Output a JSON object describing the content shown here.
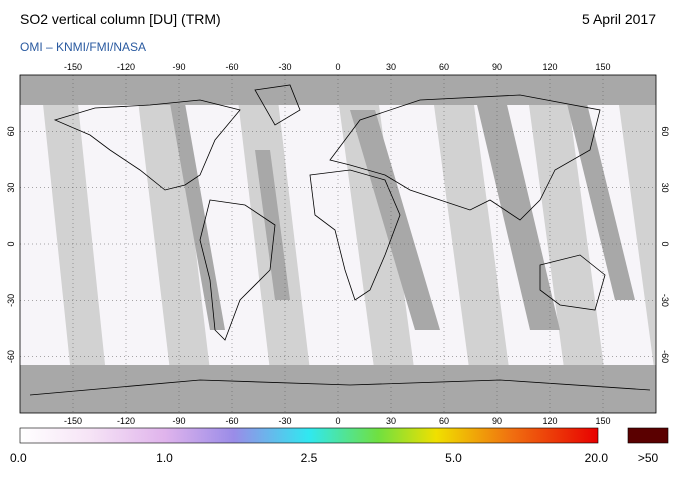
{
  "header": {
    "title": "SO2 vertical column [DU] (TRM)",
    "date": "5 April 2017",
    "credit": "OMI  –  KNMI/FMI/NASA"
  },
  "map": {
    "lon_ticks": [
      -150,
      -120,
      -90,
      -60,
      -30,
      0,
      30,
      60,
      90,
      120,
      150
    ],
    "lat_ticks": [
      60,
      30,
      0,
      -30,
      -60
    ]
  },
  "colorbar": {
    "ticks": [
      {
        "value": 0,
        "label": "0.0"
      },
      {
        "value": 1,
        "label": "1.0"
      },
      {
        "value": 2.5,
        "label": "2.5"
      },
      {
        "value": 5,
        "label": "5.0"
      },
      {
        "value": 20,
        "label": "20.0"
      }
    ],
    "overflow_label": ">50"
  }
}
